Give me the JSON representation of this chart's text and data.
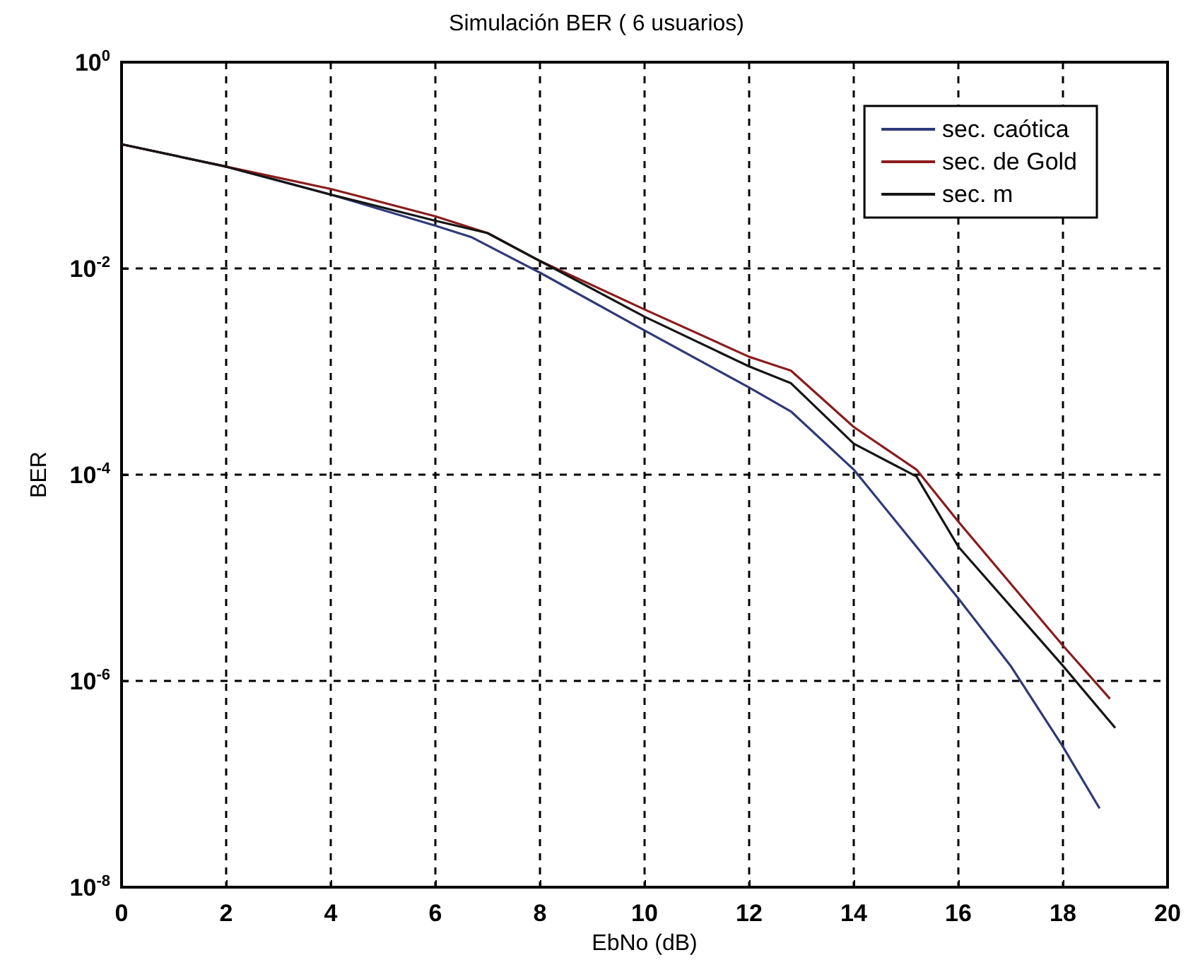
{
  "chart_data": {
    "type": "line",
    "title": "Simulación BER ( 6 usuarios)",
    "xlabel": "EbNo (dB)",
    "ylabel": "BER",
    "log": "y",
    "grid": true,
    "legend": "top right",
    "marker": "none",
    "line_style": "solid",
    "xlim": [
      0,
      20
    ],
    "xticks": [
      0,
      2,
      4,
      6,
      8,
      10,
      12,
      14,
      16,
      18,
      20
    ],
    "ylim": [
      1e-08,
      1
    ],
    "yticks": [
      {
        "value": 1e-08,
        "label": "10$^{-8}$"
      },
      {
        "value": 1e-06,
        "label": "10$^{-6}$"
      },
      {
        "value": 0.0001,
        "label": "10$^{-4}$"
      },
      {
        "value": 0.01,
        "label": "10$^{-2}$"
      },
      {
        "value": 1,
        "label": "10$^{0}$"
      }
    ],
    "series": [
      {
        "name": "sec. caótica",
        "color": "#2e3a78",
        "x": [
          0,
          2,
          4,
          6,
          6.7,
          8,
          10,
          12,
          12.8,
          14,
          15.2,
          16,
          17,
          18,
          18.7
        ],
        "values": [
          0.16,
          0.097,
          0.052,
          0.026,
          0.02,
          0.0091,
          0.0025,
          0.0007,
          0.00041,
          0.000112,
          2e-05,
          6.3e-06,
          1.4e-06,
          2.3e-07,
          5.8e-08
        ]
      },
      {
        "name": "sec. de Gold",
        "color": "#8b1c1c",
        "x": [
          0,
          2,
          4,
          6,
          7,
          8,
          10,
          12,
          12.8,
          14,
          15.2,
          16,
          18,
          18.9
        ],
        "values": [
          0.16,
          0.097,
          0.059,
          0.032,
          0.022,
          0.0118,
          0.004,
          0.00139,
          0.00102,
          0.00029,
          0.000112,
          3.5e-05,
          2.2e-06,
          6.7e-07
        ]
      },
      {
        "name": "sec. m",
        "color": "#151515",
        "x": [
          0,
          2,
          4,
          6,
          7,
          8,
          10,
          12,
          12.8,
          14,
          15.2,
          16,
          18,
          19
        ],
        "values": [
          0.16,
          0.097,
          0.052,
          0.029,
          0.022,
          0.0118,
          0.0034,
          0.00112,
          0.00077,
          0.0002,
          9.6e-05,
          2e-05,
          1.4e-06,
          3.5e-07
        ]
      }
    ]
  }
}
